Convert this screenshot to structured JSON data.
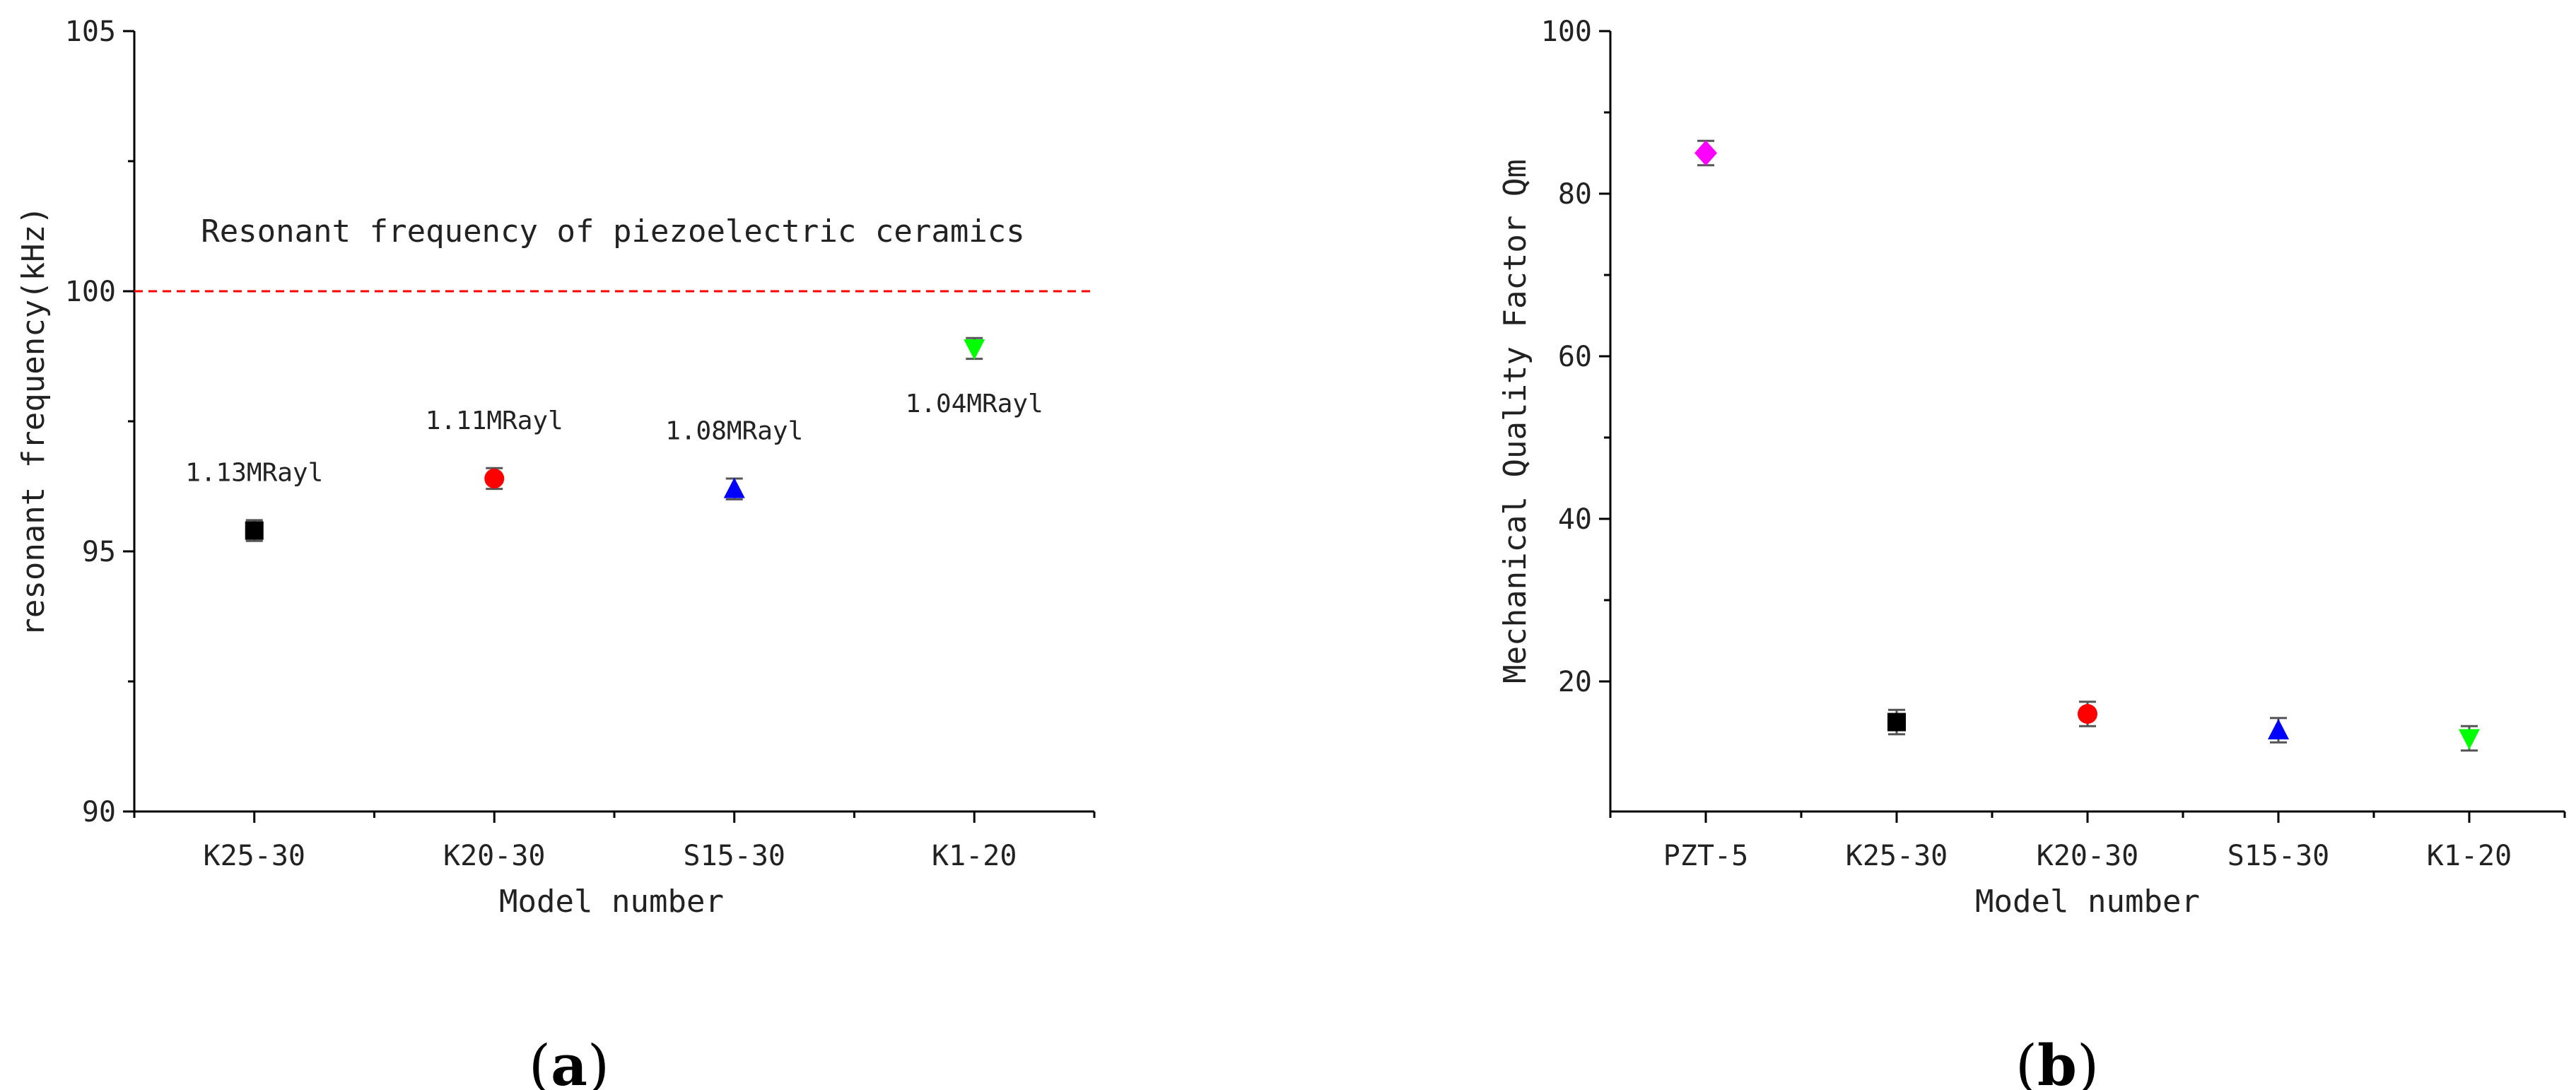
{
  "panels": [
    {
      "label_open": "(",
      "label_letter": "a",
      "label_close": ")"
    },
    {
      "label_open": "(",
      "label_letter": "b",
      "label_close": ")"
    }
  ],
  "chart_data": [
    {
      "type": "scatter",
      "title": "",
      "xlabel": "Model number",
      "ylabel": "resonant frequency(kHz)",
      "ylim": [
        90,
        105
      ],
      "yticks": [
        90,
        95,
        100,
        105
      ],
      "yticks_labels": [
        "90",
        "95",
        "100",
        "105"
      ],
      "categories": [
        "K25-30",
        "K20-30",
        "S15-30",
        "K1-20"
      ],
      "values": [
        95.4,
        96.4,
        96.2,
        98.9
      ],
      "errors": [
        0.2,
        0.2,
        0.2,
        0.2
      ],
      "markers": [
        "square",
        "circle",
        "triangle-up",
        "triangle-down"
      ],
      "colors": [
        "#000000",
        "#ff0000",
        "#0000ff",
        "#00ff00"
      ],
      "point_labels": [
        "1.13MRayl",
        "1.11MRayl",
        "1.08MRayl",
        "1.04MRayl"
      ],
      "reference_line": {
        "value": 100,
        "color": "#ff0000",
        "label": "Resonant frequency of piezoelectric ceramics"
      },
      "grid": false
    },
    {
      "type": "scatter",
      "title": "",
      "xlabel": "Model number",
      "ylabel": "Mechanical Quality Factor Qm",
      "ylim": [
        4,
        100
      ],
      "yticks": [
        20,
        40,
        60,
        80,
        100
      ],
      "yticks_labels": [
        "20",
        "40",
        "60",
        "80",
        "100"
      ],
      "categories": [
        "PZT-5",
        "K25-30",
        "K20-30",
        "S15-30",
        "K1-20"
      ],
      "values": [
        85,
        15,
        16,
        14,
        13
      ],
      "errors": [
        1.5,
        1.5,
        1.5,
        1.5,
        1.5
      ],
      "markers": [
        "diamond",
        "square",
        "circle",
        "triangle-up",
        "triangle-down"
      ],
      "colors": [
        "#ff00ff",
        "#000000",
        "#ff0000",
        "#0000ff",
        "#00ff00"
      ],
      "grid": false
    }
  ]
}
